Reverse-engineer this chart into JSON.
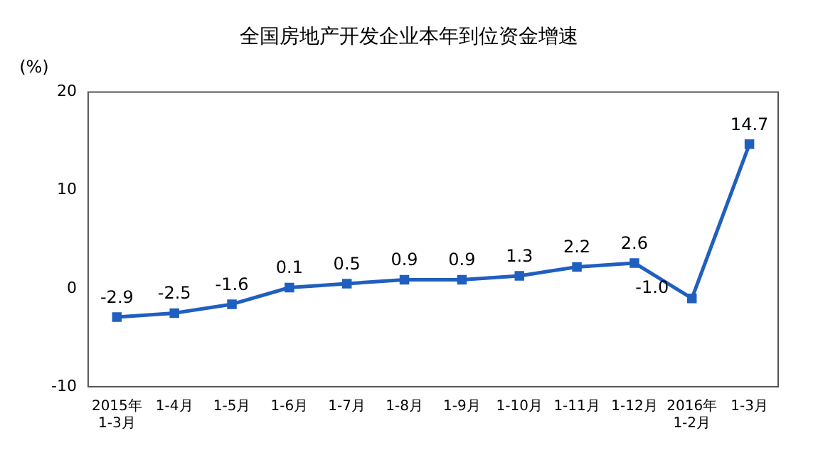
{
  "chart_data": {
    "type": "line",
    "title": "全国房地产开发企业本年到位资金增速",
    "ylabel": "(%)",
    "categories": [
      "2015年\n1-3月",
      "1-4月",
      "1-5月",
      "1-6月",
      "1-7月",
      "1-8月",
      "1-9月",
      "1-10月",
      "1-11月",
      "1-12月",
      "2016年\n1-2月",
      "1-3月"
    ],
    "series": [
      {
        "color": "#1f5fbf",
        "values": [
          -2.9,
          -2.5,
          -1.6,
          0.1,
          0.5,
          0.9,
          0.9,
          1.3,
          2.2,
          2.6,
          -1.0,
          14.7
        ],
        "value_labels": [
          "-2.9",
          "-2.5",
          "-1.6",
          "0.1",
          "0.5",
          "0.9",
          "0.9",
          "1.3",
          "2.2",
          "2.6",
          "-1.0",
          "14.7"
        ]
      }
    ],
    "ylim": [
      -10,
      20
    ],
    "yticks": [
      -10,
      0,
      10,
      20
    ],
    "grid": false,
    "legend": false,
    "marker": "square",
    "line_style": "solid"
  }
}
